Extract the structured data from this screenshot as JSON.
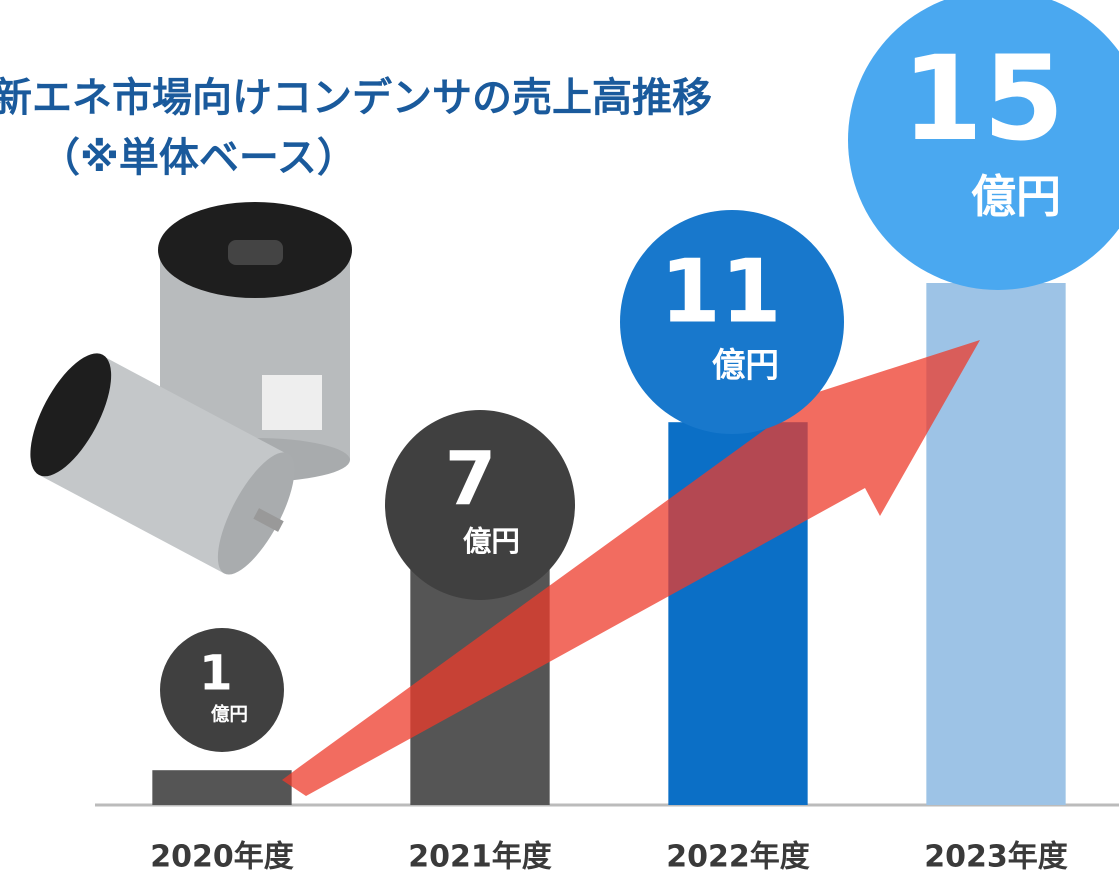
{
  "chart_data": {
    "type": "bar",
    "title": "新エネ市場向けコンデンサの売上高推移",
    "subtitle": "（※単体ベース）",
    "categories": [
      "2020年度",
      "2021年度",
      "2022年度",
      "2023年度"
    ],
    "values": [
      1,
      7,
      11,
      15
    ],
    "value_unit": "億円",
    "colors": [
      "#555555",
      "#555555",
      "#0b6fc6",
      "#9dc3e6"
    ],
    "label_colors": [
      "#404040",
      "#404040",
      "#1878cc",
      "#4aa8f0"
    ],
    "ylim": [
      0,
      15
    ]
  }
}
